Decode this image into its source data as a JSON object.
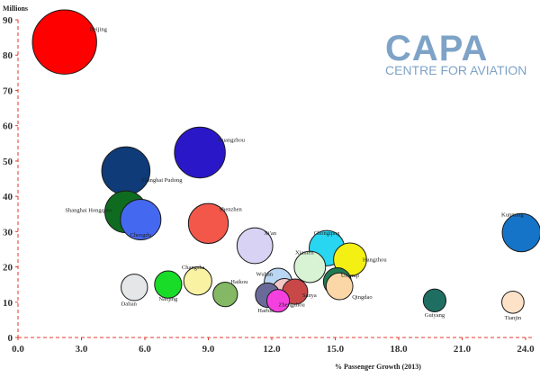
{
  "chart_data": {
    "type": "scatter",
    "bubble": true,
    "ylabel": "Millions",
    "xlabel": "% Passenger Growth (2013)",
    "xlim": [
      0,
      24
    ],
    "ylim": [
      0,
      90
    ],
    "x_ticks": [
      "0.0",
      "3.0",
      "6.0",
      "9.0",
      "12.0",
      "15.0",
      "18.0",
      "21.0",
      "24.0"
    ],
    "y_ticks": [
      "0",
      "10",
      "20",
      "30",
      "40",
      "50",
      "60",
      "70",
      "80",
      "90"
    ],
    "grid": false,
    "points": [
      {
        "label": "Beijing",
        "x": 2.2,
        "y": 83.7,
        "size": 83.7,
        "color": "#ff0000"
      },
      {
        "label": "Guangzhou",
        "x": 8.6,
        "y": 52.4,
        "size": 52.4,
        "color": "#2a18c8"
      },
      {
        "label": "Shanghai Pudong",
        "x": 5.1,
        "y": 47.2,
        "size": 47.2,
        "color": "#0f3b78"
      },
      {
        "label": "Shanghai Hongqiao",
        "x": 5.1,
        "y": 35.6,
        "size": 35.6,
        "color": "#0f6b1f"
      },
      {
        "label": "Chengdu",
        "x": 5.8,
        "y": 33.4,
        "size": 33.4,
        "color": "#4568f0"
      },
      {
        "label": "Shenzhen",
        "x": 9.0,
        "y": 32.3,
        "size": 32.3,
        "color": "#f2574a"
      },
      {
        "label": "Kunming",
        "x": 23.8,
        "y": 29.7,
        "size": 29.7,
        "color": "#1674c8"
      },
      {
        "label": "Xi'an",
        "x": 11.2,
        "y": 26.0,
        "size": 26.0,
        "color": "#d8d2f4"
      },
      {
        "label": "Chongqing",
        "x": 14.6,
        "y": 25.3,
        "size": 25.3,
        "color": "#28d6f2"
      },
      {
        "label": "Hangzhou",
        "x": 15.7,
        "y": 22.1,
        "size": 22.1,
        "color": "#f5f014"
      },
      {
        "label": "Xiamen",
        "x": 13.8,
        "y": 20.0,
        "size": 20.0,
        "color": "#d8f2d4"
      },
      {
        "label": "Changsha",
        "x": 8.5,
        "y": 16.0,
        "size": 16.0,
        "color": "#f8f2a2"
      },
      {
        "label": "Urumqi",
        "x": 15.1,
        "y": 15.8,
        "size": 15.8,
        "color": "#1f7a52"
      },
      {
        "label": "Wuhan",
        "x": 12.3,
        "y": 15.7,
        "size": 15.7,
        "color": "#b9d6f2"
      },
      {
        "label": "Nanjing",
        "x": 7.1,
        "y": 15.0,
        "size": 15.0,
        "color": "#19dc28"
      },
      {
        "label": "Qingdao",
        "x": 15.2,
        "y": 14.5,
        "size": 14.5,
        "color": "#fbd6a6"
      },
      {
        "label": "Dalian",
        "x": 5.5,
        "y": 14.2,
        "size": 14.2,
        "color": "#e4e6e8"
      },
      {
        "label": "Zhengzhou",
        "x": 12.6,
        "y": 13.1,
        "size": 13.1,
        "color": "#f5c8c8"
      },
      {
        "label": "Sanya",
        "x": 13.1,
        "y": 13.0,
        "size": 13.0,
        "color": "#c84848"
      },
      {
        "label": "Haikou",
        "x": 9.8,
        "y": 12.2,
        "size": 12.2,
        "color": "#84b864"
      },
      {
        "label": "Harbin",
        "x": 11.8,
        "y": 12.0,
        "size": 12.0,
        "color": "#6a6a9a"
      },
      {
        "label": "Guiyang",
        "x": 19.7,
        "y": 10.5,
        "size": 10.5,
        "color": "#1f6e62"
      },
      {
        "label": "Tianjin",
        "x": 23.4,
        "y": 10.0,
        "size": 10.0,
        "color": "#fde2c8"
      },
      {
        "label": "",
        "x": 12.3,
        "y": 10.4,
        "size": 10.4,
        "color": "#f540e0"
      }
    ]
  },
  "logo": {
    "main": "CAPA",
    "sub": "CENTRE FOR AVIATION"
  }
}
